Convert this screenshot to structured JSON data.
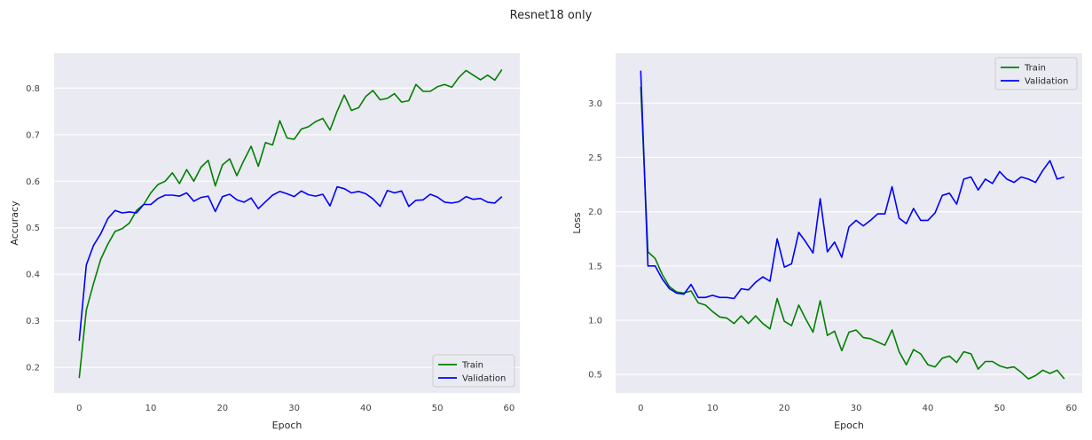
{
  "figure": {
    "title": "Resnet18 only"
  },
  "colors": {
    "train": "#008000",
    "validation": "#0000ff",
    "axes_bg": "#eaeaf2",
    "grid": "#ffffff"
  },
  "chart_data": [
    {
      "type": "line",
      "xlabel": "Epoch",
      "ylabel": "Accuracy",
      "xlim": [
        -3.5,
        61.5
      ],
      "ylim": [
        0.145,
        0.875
      ],
      "xticks": [
        0,
        10,
        20,
        30,
        40,
        50,
        60
      ],
      "yticks": [
        0.2,
        0.3,
        0.4,
        0.5,
        0.6,
        0.7,
        0.8
      ],
      "grid": true,
      "legend": "lower-right",
      "x": [
        0,
        1,
        2,
        3,
        4,
        5,
        6,
        7,
        8,
        9,
        10,
        11,
        12,
        13,
        14,
        15,
        16,
        17,
        18,
        19,
        20,
        21,
        22,
        23,
        24,
        25,
        26,
        27,
        28,
        29,
        30,
        31,
        32,
        33,
        34,
        35,
        36,
        37,
        38,
        39,
        40,
        41,
        42,
        43,
        44,
        45,
        46,
        47,
        48,
        49,
        50,
        51,
        52,
        53,
        54,
        55,
        56,
        57,
        58,
        59
      ],
      "series": [
        {
          "name": "Train",
          "color": "#008000",
          "values": [
            0.177,
            0.323,
            0.38,
            0.432,
            0.465,
            0.492,
            0.498,
            0.51,
            0.537,
            0.55,
            0.575,
            0.593,
            0.6,
            0.618,
            0.595,
            0.625,
            0.6,
            0.63,
            0.645,
            0.59,
            0.635,
            0.648,
            0.612,
            0.645,
            0.675,
            0.632,
            0.683,
            0.678,
            0.73,
            0.693,
            0.69,
            0.712,
            0.717,
            0.728,
            0.735,
            0.71,
            0.75,
            0.785,
            0.752,
            0.758,
            0.782,
            0.795,
            0.775,
            0.778,
            0.788,
            0.77,
            0.773,
            0.808,
            0.793,
            0.793,
            0.803,
            0.808,
            0.802,
            0.823,
            0.838,
            0.828,
            0.818,
            0.828,
            0.817,
            0.84
          ]
        },
        {
          "name": "Validation",
          "color": "#0000ff",
          "values": [
            0.257,
            0.42,
            0.462,
            0.487,
            0.52,
            0.537,
            0.532,
            0.534,
            0.532,
            0.55,
            0.55,
            0.563,
            0.57,
            0.57,
            0.568,
            0.575,
            0.557,
            0.565,
            0.568,
            0.535,
            0.567,
            0.572,
            0.56,
            0.555,
            0.564,
            0.541,
            0.556,
            0.57,
            0.578,
            0.573,
            0.567,
            0.579,
            0.571,
            0.568,
            0.572,
            0.547,
            0.588,
            0.584,
            0.575,
            0.578,
            0.573,
            0.562,
            0.546,
            0.58,
            0.575,
            0.579,
            0.546,
            0.559,
            0.56,
            0.572,
            0.566,
            0.555,
            0.553,
            0.556,
            0.567,
            0.561,
            0.563,
            0.555,
            0.553,
            0.567
          ]
        }
      ]
    },
    {
      "type": "line",
      "xlabel": "Epoch",
      "ylabel": "Loss",
      "xlim": [
        -3.5,
        61.5
      ],
      "ylim": [
        0.33,
        3.46
      ],
      "xticks": [
        0,
        10,
        20,
        30,
        40,
        50,
        60
      ],
      "yticks": [
        0.5,
        1.0,
        1.5,
        2.0,
        2.5,
        3.0
      ],
      "grid": true,
      "legend": "upper-right",
      "x": [
        0,
        1,
        2,
        3,
        4,
        5,
        6,
        7,
        8,
        9,
        10,
        11,
        12,
        13,
        14,
        15,
        16,
        17,
        18,
        19,
        20,
        21,
        22,
        23,
        24,
        25,
        26,
        27,
        28,
        29,
        30,
        31,
        32,
        33,
        34,
        35,
        36,
        37,
        38,
        39,
        40,
        41,
        42,
        43,
        44,
        45,
        46,
        47,
        48,
        49,
        50,
        51,
        52,
        53,
        54,
        55,
        56,
        57,
        58,
        59
      ],
      "series": [
        {
          "name": "Train",
          "color": "#008000",
          "values": [
            3.15,
            1.63,
            1.57,
            1.42,
            1.31,
            1.26,
            1.25,
            1.27,
            1.16,
            1.14,
            1.08,
            1.03,
            1.02,
            0.97,
            1.04,
            0.97,
            1.04,
            0.97,
            0.92,
            1.2,
            0.99,
            0.95,
            1.14,
            1.01,
            0.89,
            1.18,
            0.86,
            0.9,
            0.72,
            0.89,
            0.91,
            0.84,
            0.83,
            0.8,
            0.77,
            0.91,
            0.71,
            0.59,
            0.73,
            0.69,
            0.59,
            0.57,
            0.65,
            0.67,
            0.61,
            0.71,
            0.69,
            0.55,
            0.62,
            0.62,
            0.58,
            0.56,
            0.57,
            0.52,
            0.46,
            0.49,
            0.54,
            0.51,
            0.54,
            0.46
          ]
        },
        {
          "name": "Validation",
          "color": "#0000ff",
          "values": [
            3.3,
            1.5,
            1.5,
            1.38,
            1.29,
            1.25,
            1.24,
            1.33,
            1.21,
            1.21,
            1.23,
            1.21,
            1.21,
            1.2,
            1.29,
            1.28,
            1.35,
            1.4,
            1.36,
            1.75,
            1.49,
            1.52,
            1.81,
            1.72,
            1.62,
            2.12,
            1.63,
            1.72,
            1.58,
            1.86,
            1.92,
            1.87,
            1.92,
            1.98,
            1.98,
            2.23,
            1.94,
            1.89,
            2.03,
            1.92,
            1.92,
            1.99,
            2.15,
            2.17,
            2.07,
            2.3,
            2.32,
            2.2,
            2.3,
            2.26,
            2.37,
            2.3,
            2.27,
            2.32,
            2.3,
            2.27,
            2.38,
            2.47,
            2.3,
            2.32
          ]
        }
      ]
    }
  ]
}
